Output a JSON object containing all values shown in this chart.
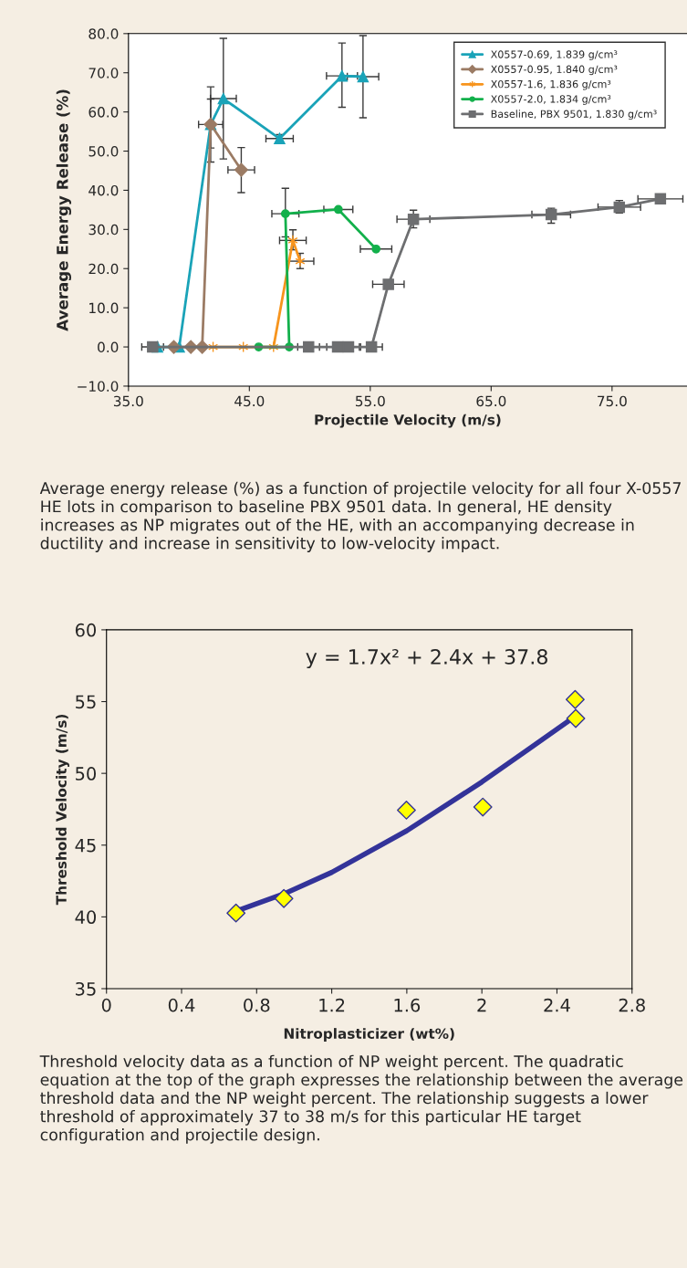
{
  "chart_data": [
    {
      "type": "line",
      "xlabel": "Projectile Velocity (m/s)",
      "ylabel": "Average Energy Release (%)",
      "xlim": [
        35,
        81.2
      ],
      "xticks": [
        {
          "value": 35,
          "label": "35.0"
        },
        {
          "value": 45,
          "label": "45.0"
        },
        {
          "value": 55,
          "label": "55.0"
        },
        {
          "value": 65,
          "label": "65.0"
        },
        {
          "value": 75,
          "label": "75.0"
        }
      ],
      "ylim": [
        -10,
        80
      ],
      "yticks": [
        {
          "value": -10,
          "label": "−10.0"
        },
        {
          "value": 0,
          "label": "0.0"
        },
        {
          "value": 10,
          "label": "10.0"
        },
        {
          "value": 20,
          "label": "20.0"
        },
        {
          "value": 30,
          "label": "30.0"
        },
        {
          "value": 40,
          "label": "40.0"
        },
        {
          "value": 50,
          "label": "50.0"
        },
        {
          "value": 60,
          "label": "60.0"
        },
        {
          "value": 70,
          "label": "70.0"
        },
        {
          "value": 80,
          "label": "80.0"
        }
      ],
      "legend": "top right",
      "series": [
        {
          "name": "X0557-0.69, 1.839 g/cm³",
          "color": "#1aa3b8",
          "marker": "triangle",
          "x": [
            37.4,
            39.2,
            41.8,
            42.85,
            47.5,
            52.66,
            54.4
          ],
          "values": [
            0,
            0,
            56.8,
            63.4,
            53.2,
            69.2,
            69.0
          ],
          "errors": [
            null,
            null,
            [
              50.8,
              63.3
            ],
            [
              48.0,
              78.8
            ],
            [
              52.2,
              54.2
            ],
            [
              61.2,
              77.6
            ],
            [
              58.5,
              79.5
            ]
          ],
          "xerrors": [
            null,
            null,
            null,
            1.07,
            1.13,
            1.28,
            1.3
          ]
        },
        {
          "name": "X0557-0.95, 1.840 g/cm³",
          "color": "#9b7b64",
          "marker": "diamond",
          "x": [
            38.75,
            40.16,
            41.1,
            41.8,
            44.33
          ],
          "values": [
            0,
            0,
            0,
            56.8,
            45.2
          ],
          "errors": [
            null,
            null,
            null,
            [
              47.2,
              66.4
            ],
            [
              39.4,
              50.9
            ]
          ],
          "xerrors": [
            null,
            null,
            null,
            1.0,
            1.1
          ]
        },
        {
          "name": "X0557-1.6, 1.836 g/cm³",
          "color": "#f7941d",
          "marker": "cross",
          "x": [
            42.0,
            44.5,
            47.0,
            48.6,
            49.2
          ],
          "values": [
            0,
            0,
            0,
            27.2,
            21.9
          ],
          "errors": [
            null,
            null,
            null,
            [
              24.8,
              29.9
            ],
            [
              20.0,
              23.9
            ]
          ],
          "xerrors": [
            null,
            null,
            null,
            1.1,
            1.13
          ]
        },
        {
          "name": "X0557-2.0, 1.834 g/cm³",
          "color": "#12b04b",
          "marker": "circle",
          "x": [
            45.77,
            48.3,
            47.98,
            52.36,
            55.48
          ],
          "values": [
            0,
            0,
            34.0,
            35.1,
            25.0
          ],
          "errors": [
            null,
            null,
            [
              28.1,
              40.5
            ],
            null,
            null
          ],
          "xerrors": [
            null,
            null,
            1.12,
            1.2,
            1.3
          ]
        },
        {
          "name": "Baseline, PBX 9501, 1.830 g/cm³",
          "color": "#6d6e70",
          "marker": "square",
          "x": [
            37.0,
            49.9,
            52.3,
            53.2,
            55.1,
            56.5,
            58.57,
            69.97,
            75.6,
            79.0
          ],
          "values": [
            0,
            0,
            0,
            0,
            0,
            16.0,
            32.6,
            33.8,
            35.7,
            37.8
          ],
          "errors": [
            null,
            null,
            null,
            null,
            null,
            null,
            [
              30.4,
              34.9
            ],
            [
              31.6,
              35.4
            ],
            [
              34.2,
              37.4
            ],
            [
              36.8,
              38.8
            ]
          ],
          "xerrors": [
            0.9,
            0.9,
            0.9,
            0.9,
            0.9,
            1.3,
            1.36,
            1.6,
            1.76,
            1.86
          ]
        }
      ],
      "annotations": [
        "Average energy release (%) as a function of projectile velocity for all four X-0557 HE lots in comparison to baseline PBX 9501 data. In general, HE density increases as NP migrates out of the HE, with an accompanying decrease in ductility and increase in sensitivity to low-velocity impact."
      ]
    },
    {
      "type": "scatter",
      "xlabel": "Nitroplasticizer (wt%)",
      "ylabel": "Threshold Velocity (m/s)",
      "xlim": [
        0,
        2.8
      ],
      "xticks": [
        0,
        0.4,
        0.8,
        1.2,
        1.6,
        2,
        2.4,
        2.8
      ],
      "ylim": [
        35,
        60
      ],
      "yticks": [
        35,
        40,
        45,
        50,
        55,
        60
      ],
      "series": [
        {
          "type": "scatter",
          "color": "#ffff00",
          "marker": "diamond",
          "x": [
            0.69,
            0.945,
            1.598,
            2.005,
            2.497,
            2.5
          ],
          "values": [
            40.27,
            41.28,
            47.44,
            47.65,
            55.15,
            53.83
          ]
        },
        {
          "type": "line",
          "color": "#333399",
          "marker": "none",
          "x": [
            0.69,
            0.945,
            1.2,
            1.6,
            2.0,
            2.25,
            2.5
          ],
          "values": [
            40.4,
            41.6,
            43.1,
            46.0,
            49.4,
            51.7,
            54.0
          ]
        }
      ],
      "annotations": [
        "y = 1.7x² + 2.4x + 37.8",
        "Threshold velocity data as a function of NP weight percent. The quadratic equation at the top of the graph expresses the relationship between the average threshold data and the NP weight percent. The relationship suggests a lower threshold of approximately 37 to 38 m/s for this particular HE target configuration and projectile design."
      ]
    }
  ]
}
